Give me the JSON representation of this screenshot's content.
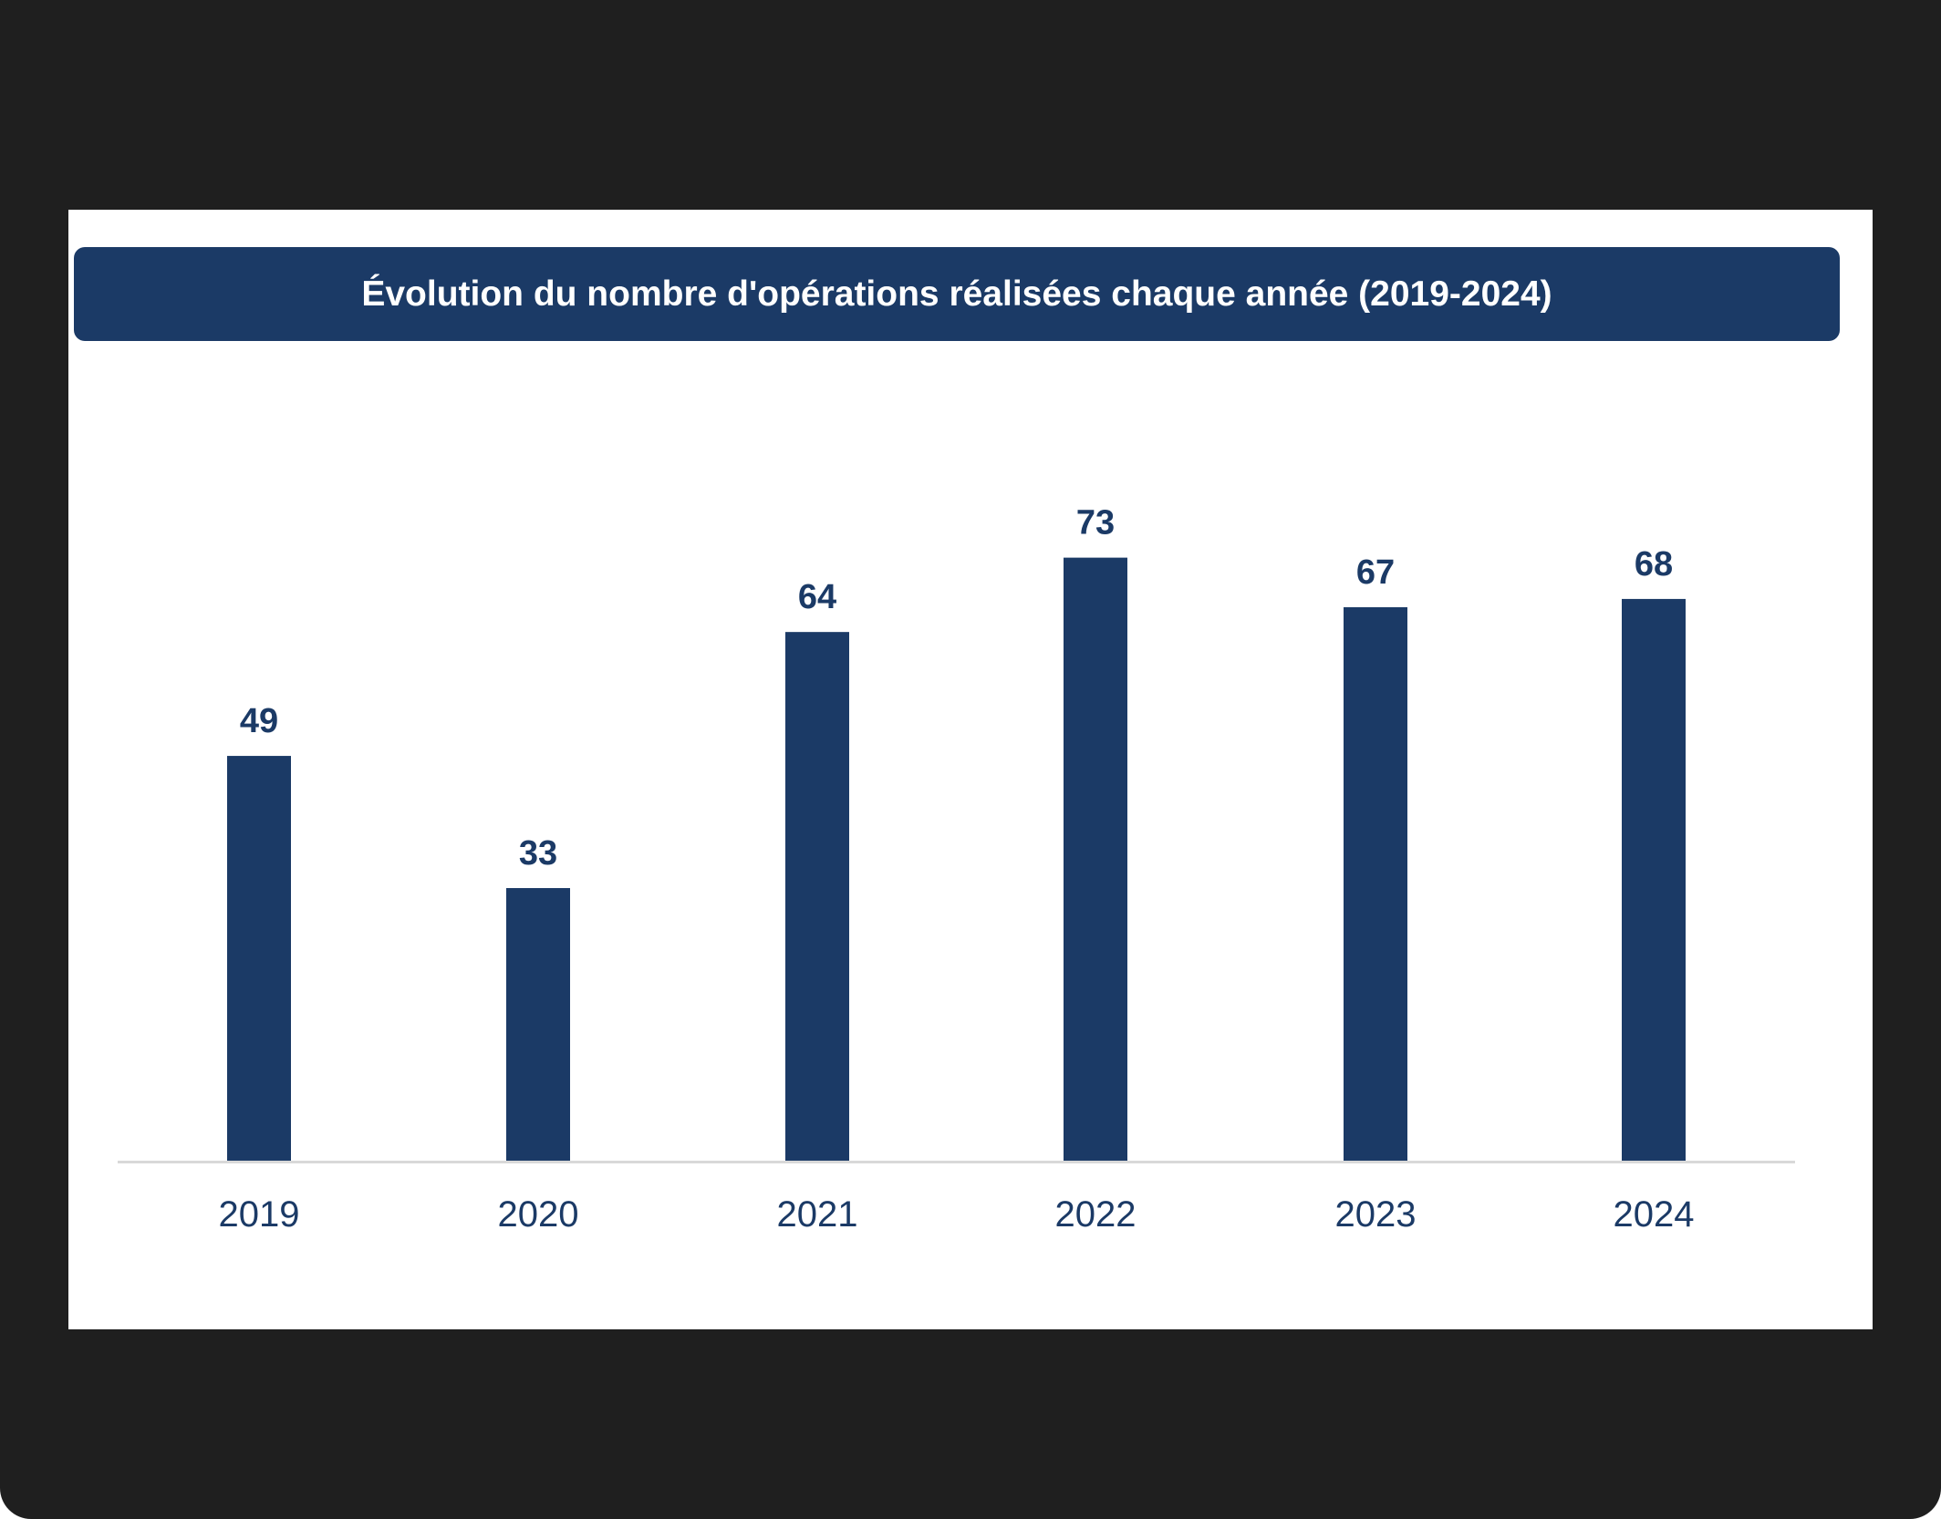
{
  "chart_data": {
    "type": "bar",
    "title": "Évolution du nombre d'opérations réalisées chaque année (2019-2024)",
    "categories": [
      "2019",
      "2020",
      "2021",
      "2022",
      "2023",
      "2024"
    ],
    "values": [
      49,
      33,
      64,
      73,
      67,
      68
    ],
    "xlabel": "",
    "ylabel": "",
    "ylim": [
      0,
      80
    ],
    "grid": false,
    "legend": "none",
    "data_labels": true,
    "colors": {
      "bar": "#1b3a66",
      "axis": "#d9d9d9",
      "text": "#1b3a66",
      "title_bg": "#1b3a66",
      "title_text": "#ffffff"
    }
  }
}
